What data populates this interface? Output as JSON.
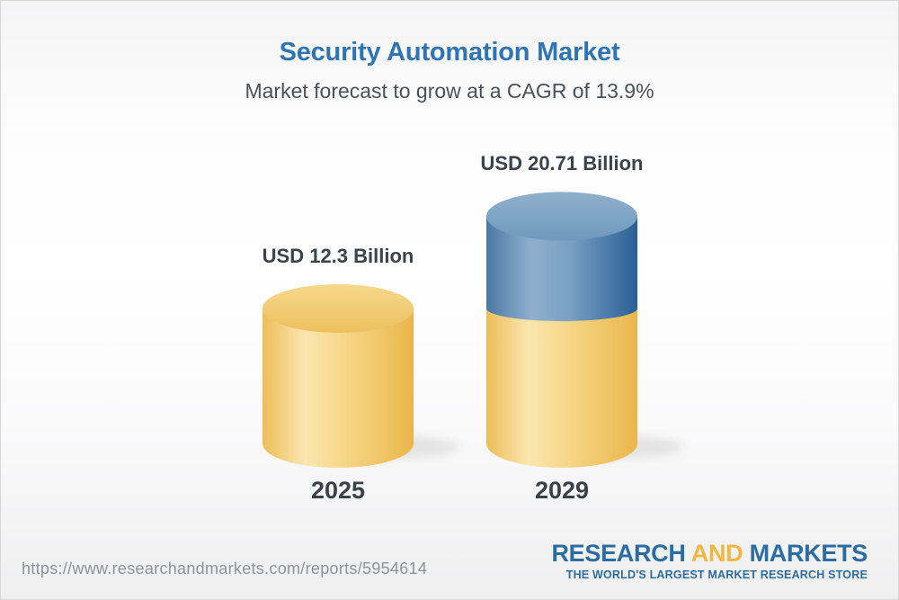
{
  "header": {
    "title": "Security Automation Market",
    "subtitle": "Market forecast to grow at a CAGR of 13.9%"
  },
  "chart_data": {
    "type": "bar",
    "subtype": "3d-cylinder-stacked",
    "title": "Security Automation Market",
    "subtitle": "Market forecast to grow at a CAGR of 13.9%",
    "cagr_percent": 13.9,
    "unit": "USD Billion",
    "categories": [
      "2025",
      "2029"
    ],
    "values": [
      12.3,
      20.71
    ],
    "value_labels": [
      "USD 12.3 Billion",
      "USD 20.71 Billion"
    ],
    "bars": [
      {
        "category": "2025",
        "value": 12.3,
        "label": "USD 12.3 Billion",
        "segments": [
          {
            "value": 12.3,
            "color": "gold"
          }
        ]
      },
      {
        "category": "2029",
        "value": 20.71,
        "label": "USD 20.71 Billion",
        "segments": [
          {
            "value": 12.3,
            "color": "gold"
          },
          {
            "value": 8.41,
            "color": "blue"
          }
        ]
      }
    ],
    "colors": {
      "gold": "#f0c264",
      "blue": "#4a7aa8",
      "label_text": "#3b4249"
    },
    "legend": "none",
    "grid": false,
    "axes": "none"
  },
  "footer": {
    "url": "https://www.researchandmarkets.com/reports/5954614",
    "logo": {
      "part1": "RESEARCH",
      "part2": "AND",
      "part3": "MARKETS",
      "tagline": "THE WORLD'S LARGEST MARKET RESEARCH STORE"
    }
  },
  "colors": {
    "title_blue": "#2f75b6",
    "subtitle_gray": "#4b5157",
    "logo_blue": "#2b6ca3",
    "logo_gold": "#f0b840",
    "url_gray": "#8f9296"
  }
}
